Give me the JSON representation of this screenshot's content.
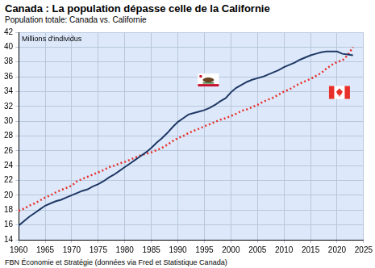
{
  "chart_data": {
    "type": "line",
    "title": "Canada : La population dépasse celle de la Californie",
    "subtitle": "Population totale: Canada vs. Californie",
    "ylabel": "Millions d'individus",
    "source": "FBN Économie et Stratégie (données via Fred et Statistique Canada)",
    "x": [
      1960,
      1961,
      1962,
      1963,
      1964,
      1965,
      1966,
      1967,
      1968,
      1969,
      1970,
      1971,
      1972,
      1973,
      1974,
      1975,
      1976,
      1977,
      1978,
      1979,
      1980,
      1981,
      1982,
      1983,
      1984,
      1985,
      1986,
      1987,
      1988,
      1989,
      1990,
      1991,
      1992,
      1993,
      1994,
      1995,
      1996,
      1997,
      1998,
      1999,
      2000,
      2001,
      2002,
      2003,
      2004,
      2005,
      2006,
      2007,
      2008,
      2009,
      2010,
      2011,
      2012,
      2013,
      2014,
      2015,
      2016,
      2017,
      2018,
      2019,
      2020,
      2021,
      2022,
      2023
    ],
    "series": [
      {
        "color": "#1f3864",
        "line_style": "solid",
        "marker": "none",
        "values": [
          15.9,
          16.5,
          17.1,
          17.6,
          18.1,
          18.6,
          18.9,
          19.2,
          19.4,
          19.7,
          20.0,
          20.3,
          20.6,
          20.8,
          21.2,
          21.5,
          21.9,
          22.4,
          22.8,
          23.3,
          23.8,
          24.3,
          24.8,
          25.3,
          25.8,
          26.4,
          27.1,
          27.7,
          28.4,
          29.2,
          29.9,
          30.4,
          30.9,
          31.1,
          31.3,
          31.5,
          31.8,
          32.2,
          32.7,
          33.1,
          33.9,
          34.5,
          34.9,
          35.3,
          35.6,
          35.8,
          36.0,
          36.3,
          36.6,
          36.9,
          37.3,
          37.6,
          37.9,
          38.3,
          38.6,
          38.9,
          39.1,
          39.3,
          39.4,
          39.4,
          39.4,
          39.1,
          39.0,
          38.9
        ]
      },
      {
        "color": "#e8302a",
        "line_style": "dotted",
        "marker": "none",
        "values": [
          17.9,
          18.2,
          18.6,
          18.9,
          19.3,
          19.7,
          20.0,
          20.4,
          20.7,
          21.0,
          21.3,
          21.9,
          22.2,
          22.5,
          22.8,
          23.1,
          23.4,
          23.8,
          24.0,
          24.3,
          24.5,
          24.8,
          25.1,
          25.4,
          25.6,
          25.8,
          26.1,
          26.4,
          26.8,
          27.3,
          27.7,
          28.0,
          28.4,
          28.7,
          29.0,
          29.3,
          29.6,
          29.9,
          30.2,
          30.4,
          30.7,
          31.0,
          31.4,
          31.6,
          31.9,
          32.2,
          32.6,
          32.9,
          33.2,
          33.6,
          34.0,
          34.3,
          34.7,
          35.1,
          35.4,
          35.7,
          36.1,
          36.5,
          37.1,
          37.6,
          38.0,
          38.2,
          38.9,
          40.0
        ]
      }
    ],
    "xlim": [
      1960,
      2025
    ],
    "xticks": [
      1960,
      1965,
      1970,
      1975,
      1980,
      1985,
      1990,
      1995,
      2000,
      2005,
      2010,
      2015,
      2020,
      2025
    ],
    "ylim": [
      14,
      42
    ],
    "yticks": [
      14,
      16,
      18,
      20,
      22,
      24,
      26,
      28,
      30,
      32,
      34,
      36,
      38,
      40,
      42
    ],
    "grid": true
  }
}
